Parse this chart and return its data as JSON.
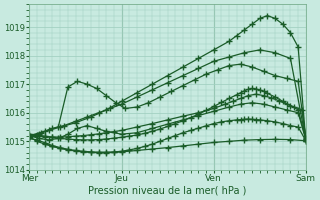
{
  "bg_color": "#c8eae0",
  "plot_bg_color": "#c8eae0",
  "grid_color": "#a0cfc0",
  "line_color": "#1a5c28",
  "ylim": [
    1014.0,
    1019.8
  ],
  "yticks": [
    1014,
    1015,
    1016,
    1017,
    1018,
    1019
  ],
  "xlabel": "Pression niveau de la mer( hPa )",
  "xtick_labels": [
    "Mer",
    "Jeu",
    "Ven",
    "Sam"
  ],
  "xtick_positions": [
    0,
    96,
    192,
    288
  ],
  "series": [
    {
      "x": [
        0,
        16,
        32,
        48,
        64,
        80,
        96,
        112,
        128,
        144,
        160,
        176,
        192,
        208,
        216,
        224,
        232,
        240,
        248,
        256,
        264,
        272,
        280,
        288
      ],
      "y": [
        1015.2,
        1015.35,
        1015.5,
        1015.65,
        1015.85,
        1016.1,
        1016.4,
        1016.7,
        1017.0,
        1017.3,
        1017.6,
        1017.9,
        1018.2,
        1018.5,
        1018.7,
        1018.9,
        1019.1,
        1019.3,
        1019.4,
        1019.3,
        1019.1,
        1018.8,
        1018.3,
        1015.0
      ]
    },
    {
      "x": [
        0,
        12,
        24,
        36,
        48,
        60,
        72,
        84,
        96,
        112,
        128,
        144,
        160,
        176,
        192,
        208,
        224,
        240,
        256,
        272,
        288
      ],
      "y": [
        1015.15,
        1015.3,
        1015.45,
        1015.55,
        1015.7,
        1015.85,
        1016.0,
        1016.15,
        1016.3,
        1016.55,
        1016.8,
        1017.05,
        1017.3,
        1017.55,
        1017.8,
        1017.95,
        1018.1,
        1018.2,
        1018.1,
        1017.9,
        1015.05
      ]
    },
    {
      "x": [
        0,
        10,
        20,
        30,
        40,
        50,
        60,
        70,
        80,
        90,
        100,
        112,
        124,
        136,
        148,
        160,
        172,
        184,
        196,
        208,
        220,
        232,
        244,
        256,
        268,
        280,
        288
      ],
      "y": [
        1015.1,
        1015.25,
        1015.4,
        1015.5,
        1016.9,
        1017.1,
        1017.0,
        1016.85,
        1016.6,
        1016.35,
        1016.15,
        1016.2,
        1016.35,
        1016.55,
        1016.75,
        1016.95,
        1017.15,
        1017.35,
        1017.5,
        1017.65,
        1017.7,
        1017.6,
        1017.45,
        1017.3,
        1017.2,
        1017.1,
        1015.1
      ]
    },
    {
      "x": [
        0,
        8,
        16,
        24,
        32,
        40,
        48,
        56,
        64,
        72,
        80,
        88,
        96,
        104,
        112,
        120,
        128,
        136,
        144,
        152,
        160,
        168,
        176,
        184,
        192,
        200,
        208,
        216,
        220,
        224,
        228,
        232,
        236,
        240,
        248,
        256,
        264,
        272,
        280,
        288
      ],
      "y": [
        1015.1,
        1015.05,
        1014.95,
        1014.85,
        1014.78,
        1014.72,
        1014.68,
        1014.65,
        1014.63,
        1014.62,
        1014.62,
        1014.63,
        1014.65,
        1014.7,
        1014.75,
        1014.82,
        1014.9,
        1015.0,
        1015.1,
        1015.2,
        1015.3,
        1015.38,
        1015.46,
        1015.54,
        1015.62,
        1015.68,
        1015.72,
        1015.75,
        1015.76,
        1015.77,
        1015.78,
        1015.77,
        1015.76,
        1015.75,
        1015.72,
        1015.68,
        1015.62,
        1015.55,
        1015.5,
        1015.02
      ]
    },
    {
      "x": [
        0,
        8,
        16,
        24,
        32,
        40,
        48,
        56,
        64,
        72,
        80,
        88,
        96,
        112,
        128,
        144,
        160,
        176,
        192,
        208,
        224,
        240,
        256,
        272,
        288
      ],
      "y": [
        1015.15,
        1015.0,
        1014.9,
        1014.82,
        1014.75,
        1014.7,
        1014.66,
        1014.63,
        1014.61,
        1014.6,
        1014.6,
        1014.61,
        1014.63,
        1014.68,
        1014.73,
        1014.78,
        1014.84,
        1014.9,
        1014.96,
        1015.0,
        1015.04,
        1015.06,
        1015.07,
        1015.06,
        1015.02
      ]
    },
    {
      "x": [
        0,
        10,
        20,
        30,
        40,
        50,
        60,
        70,
        80,
        96,
        112,
        128,
        144,
        160,
        176,
        192,
        208,
        220,
        232,
        244,
        256,
        268,
        280,
        288
      ],
      "y": [
        1015.2,
        1015.1,
        1015.05,
        1015.1,
        1015.25,
        1015.45,
        1015.55,
        1015.45,
        1015.35,
        1015.25,
        1015.3,
        1015.45,
        1015.6,
        1015.75,
        1015.9,
        1016.05,
        1016.2,
        1016.3,
        1016.35,
        1016.3,
        1016.2,
        1016.1,
        1016.0,
        1015.05
      ]
    },
    {
      "x": [
        0,
        8,
        16,
        24,
        32,
        40,
        48,
        56,
        64,
        72,
        80,
        88,
        96,
        112,
        128,
        144,
        160,
        176,
        192,
        204,
        212,
        220,
        228,
        236,
        244,
        252,
        260,
        268,
        276,
        284,
        288
      ],
      "y": [
        1015.2,
        1015.18,
        1015.16,
        1015.15,
        1015.15,
        1015.16,
        1015.18,
        1015.2,
        1015.23,
        1015.26,
        1015.3,
        1015.34,
        1015.38,
        1015.5,
        1015.62,
        1015.75,
        1015.88,
        1016.0,
        1016.15,
        1016.3,
        1016.4,
        1016.5,
        1016.6,
        1016.65,
        1016.6,
        1016.52,
        1016.42,
        1016.3,
        1016.2,
        1016.1,
        1015.08
      ]
    },
    {
      "x": [
        0,
        8,
        16,
        24,
        32,
        40,
        48,
        56,
        64,
        72,
        80,
        88,
        96,
        104,
        112,
        120,
        128,
        136,
        144,
        152,
        160,
        168,
        176,
        184,
        192,
        200,
        208,
        216,
        220,
        224,
        228,
        232,
        236,
        240,
        244,
        248,
        256,
        264,
        272,
        280,
        288
      ],
      "y": [
        1015.25,
        1015.22,
        1015.18,
        1015.14,
        1015.1,
        1015.08,
        1015.06,
        1015.05,
        1015.05,
        1015.06,
        1015.08,
        1015.11,
        1015.14,
        1015.18,
        1015.22,
        1015.28,
        1015.35,
        1015.43,
        1015.52,
        1015.62,
        1015.72,
        1015.83,
        1015.95,
        1016.08,
        1016.22,
        1016.36,
        1016.5,
        1016.63,
        1016.7,
        1016.77,
        1016.82,
        1016.85,
        1016.83,
        1016.8,
        1016.75,
        1016.68,
        1016.55,
        1016.4,
        1016.25,
        1016.1,
        1015.08
      ]
    }
  ],
  "vline_color": "#7ab090",
  "marker": "+",
  "markersize": 4,
  "markeredgewidth": 1.0,
  "linewidth": 0.9,
  "xlabel_fontsize": 7,
  "ytick_fontsize": 6,
  "xtick_fontsize": 6.5
}
